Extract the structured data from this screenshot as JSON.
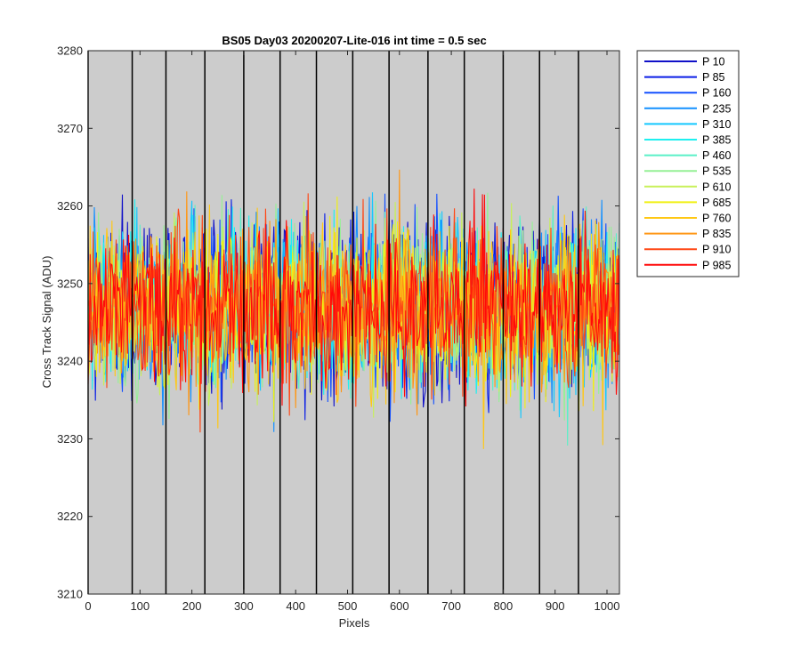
{
  "chart_data": {
    "type": "line",
    "title": "BS05 Day03 20200207-Lite-016 int time = 0.5 sec",
    "xlabel": "Pixels",
    "ylabel": "Cross Track Signal (ADU)",
    "xlim": [
      0,
      1024
    ],
    "ylim": [
      3210,
      3280
    ],
    "xticks": [
      0,
      100,
      200,
      300,
      400,
      500,
      600,
      700,
      800,
      900,
      1000
    ],
    "yticks": [
      3210,
      3220,
      3230,
      3240,
      3250,
      3260,
      3270,
      3280
    ],
    "plot_background": "#cccccc",
    "vertical_lines_x": [
      0,
      85,
      150,
      225,
      300,
      370,
      440,
      510,
      580,
      655,
      725,
      800,
      870,
      945
    ],
    "noise_mean": 3247,
    "noise_amplitude": 6,
    "legend_position": "outside-right",
    "series": [
      {
        "name": "P 10",
        "color": "#1010c8"
      },
      {
        "name": "P 85",
        "color": "#0a1ee6"
      },
      {
        "name": "P 160",
        "color": "#1450ff"
      },
      {
        "name": "P 235",
        "color": "#1490ff"
      },
      {
        "name": "P 310",
        "color": "#14c8ff"
      },
      {
        "name": "P 385",
        "color": "#1ef0f0"
      },
      {
        "name": "P 460",
        "color": "#5af0c8"
      },
      {
        "name": "P 535",
        "color": "#96f096"
      },
      {
        "name": "P 610",
        "color": "#c8f05a"
      },
      {
        "name": "P 685",
        "color": "#f0f014"
      },
      {
        "name": "P 760",
        "color": "#ffc814"
      },
      {
        "name": "P 835",
        "color": "#ff9614"
      },
      {
        "name": "P 910",
        "color": "#ff4614"
      },
      {
        "name": "P 985",
        "color": "#ff0a0a"
      }
    ]
  }
}
